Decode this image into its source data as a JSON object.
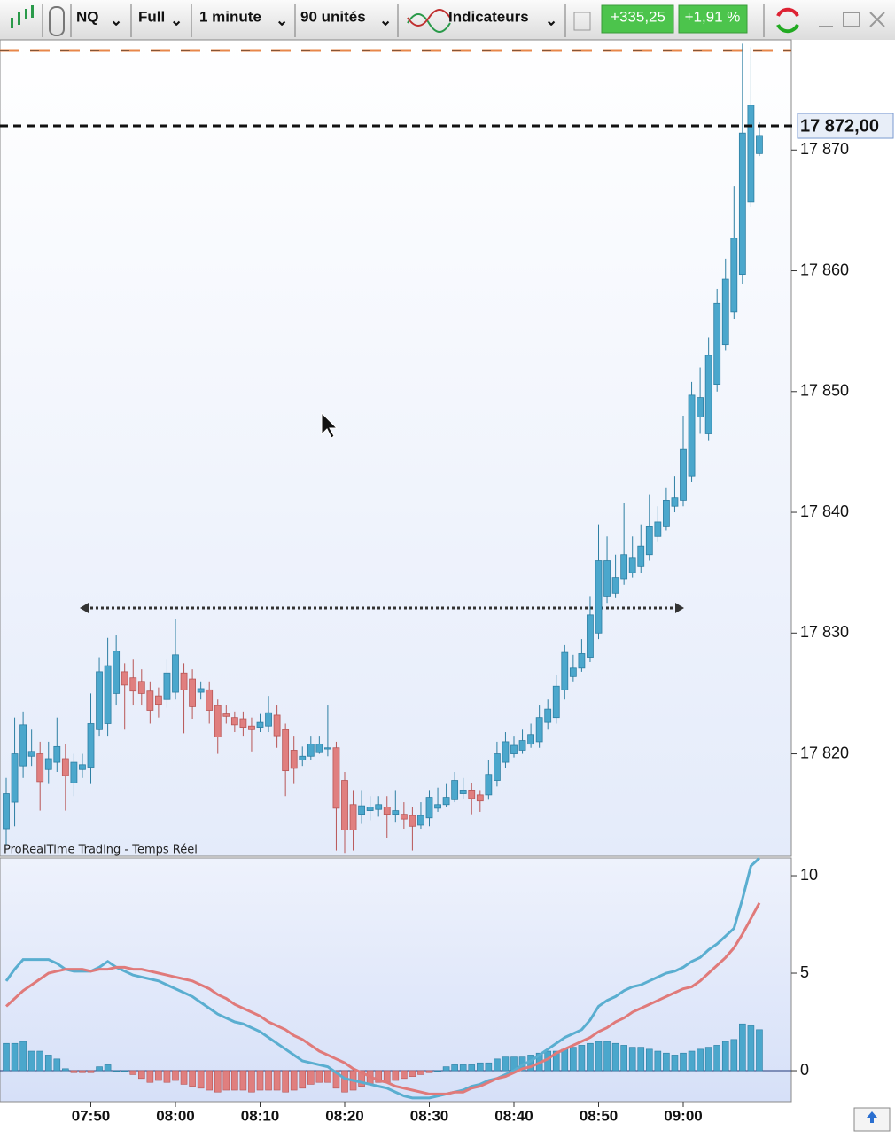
{
  "toolbar": {
    "symbol": "NQ",
    "mode": "Full",
    "interval": "1 minute",
    "units": "90 unités",
    "indicators": "Indicateurs",
    "change_points": "+335,25",
    "change_percent": "+1,91 %"
  },
  "chart_data": [
    {
      "type": "candlestick",
      "watermark": "ProRealTime Trading - Temps Réel",
      "categories": [
        null,
        null,
        null,
        null,
        null,
        null,
        null,
        null,
        null,
        null,
        "07:50",
        null,
        null,
        null,
        null,
        null,
        null,
        null,
        null,
        null,
        "08:00",
        null,
        null,
        null,
        null,
        null,
        null,
        null,
        null,
        null,
        "08:10",
        null,
        null,
        null,
        null,
        null,
        null,
        null,
        null,
        null,
        "08:20",
        null,
        null,
        null,
        null,
        null,
        null,
        null,
        null,
        null,
        "08:30",
        null,
        null,
        null,
        null,
        null,
        null,
        null,
        null,
        null,
        "08:40",
        null,
        null,
        null,
        null,
        null,
        null,
        null,
        null,
        null,
        "08:50",
        null,
        null,
        null,
        null,
        null,
        null,
        null,
        null,
        null,
        "09:00",
        null,
        null,
        null,
        null,
        null,
        null,
        null,
        null,
        null
      ],
      "open": [
        17813.8,
        17816,
        17819,
        17819.8,
        17820,
        17818.7,
        17819.3,
        17819.6,
        17817.6,
        17818.7,
        17818.9,
        17822,
        17822.5,
        17825,
        17826.8,
        17826.3,
        17826,
        17825.2,
        17824.8,
        17824.5,
        17825.1,
        17826.7,
        17826.2,
        17825.1,
        17825.3,
        17824,
        17823.3,
        17823,
        17822.9,
        17822.3,
        17822.2,
        17822.3,
        17823.2,
        17822,
        17820.3,
        17819.5,
        17819.8,
        17820.1,
        17820.4,
        17820.5,
        17817.8,
        17815.8,
        17815,
        17815.3,
        17815.4,
        17815.6,
        17815,
        17815,
        17814.9,
        17814.1,
        17814.7,
        17815.5,
        17815.8,
        17816.2,
        17816.7,
        17817,
        17816.6,
        17816.6,
        17817.8,
        17819.3,
        17820,
        17820.3,
        17820.8,
        17821,
        17822.6,
        17823,
        17825.3,
        17826.4,
        17827.1,
        17828,
        17830,
        17833,
        17833.3,
        17834.5,
        17835,
        17835.5,
        17836.5,
        17838,
        17838.8,
        17840.5,
        17841,
        17843,
        17847.9,
        17846.5,
        17850.6,
        17853.9,
        17856.6,
        17859.7,
        17865.7,
        17869.7
      ],
      "high": [
        17818,
        17823,
        17823.5,
        17822,
        17821,
        17821,
        17823,
        17820.8,
        17820,
        17820,
        17825,
        17828,
        17829.6,
        17829.8,
        17827.5,
        17827.8,
        17827,
        17826,
        17825.5,
        17827.8,
        17831.2,
        17827.5,
        17827,
        17826,
        17826,
        17824.5,
        17824,
        17823.5,
        17823.5,
        17823,
        17823.3,
        17824.8,
        17824,
        17822.5,
        17821.5,
        17820.6,
        17821.5,
        17821.5,
        17824,
        17821,
        17818.5,
        17817,
        17817,
        17816.5,
        17816.5,
        17816.5,
        17817,
        17816,
        17815.6,
        17816,
        17817,
        17817.2,
        17817.5,
        17818.5,
        17818,
        17817.6,
        17817,
        17819.5,
        17821,
        17821.8,
        17821.5,
        17822,
        17822.5,
        17824,
        17824.5,
        17826.5,
        17829,
        17828.2,
        17829.5,
        17833,
        17839,
        17838,
        17836.5,
        17840.8,
        17838,
        17839,
        17841.5,
        17840.5,
        17842,
        17843,
        17848,
        17850.8,
        17852,
        17854.5,
        17858.5,
        17861,
        17867,
        17878.8,
        17878.5,
        17872.3
      ],
      "low": [
        17812.5,
        17814,
        17818,
        17819,
        17815.3,
        17817.5,
        17818.5,
        17815.3,
        17816.5,
        17818,
        17817.5,
        17821.5,
        17821.5,
        17824,
        17822,
        17824,
        17824,
        17822.5,
        17823,
        17823.8,
        17824.5,
        17821.7,
        17822.9,
        17824.5,
        17822.5,
        17820,
        17822.5,
        17821.8,
        17821.5,
        17820.2,
        17821.8,
        17821.8,
        17820.5,
        17816.5,
        17817.5,
        17819,
        17819.5,
        17820,
        17819.8,
        17812,
        17811.8,
        17812,
        17814.2,
        17814.5,
        17814.8,
        17813,
        17814.3,
        17813.8,
        17812,
        17813.8,
        17814,
        17815.2,
        17815.6,
        17816,
        17816.3,
        17815,
        17815.2,
        17816.2,
        17817.3,
        17818.8,
        17819.7,
        17820,
        17820.5,
        17820.5,
        17822,
        17822.5,
        17824.5,
        17826,
        17826.8,
        17827.6,
        17829.5,
        17832.5,
        17832.9,
        17834,
        17834.6,
        17835,
        17836,
        17837.6,
        17838.5,
        17840,
        17840.5,
        17842.5,
        17846.5,
        17845.9,
        17850,
        17853.4,
        17856,
        17858.9,
        17865.3,
        17869.5
      ],
      "close": [
        17816.7,
        17820,
        17822.4,
        17820.2,
        17817.7,
        17819.6,
        17820.6,
        17818.2,
        17819.3,
        17819.1,
        17822.5,
        17826.8,
        17827.3,
        17828.5,
        17825.7,
        17825.2,
        17825,
        17823.6,
        17824.1,
        17826.7,
        17828.2,
        17825.3,
        17823.9,
        17825.4,
        17823.6,
        17821.4,
        17823.1,
        17822.4,
        17822.2,
        17822,
        17822.6,
        17823.4,
        17821.5,
        17818.6,
        17818.8,
        17819.8,
        17820.8,
        17820.8,
        17820.5,
        17815.5,
        17813.7,
        17813.7,
        17815.7,
        17815.6,
        17815.8,
        17815,
        17815.3,
        17814.6,
        17814,
        17814.9,
        17816.4,
        17815.8,
        17816.4,
        17817.8,
        17817,
        17816.3,
        17816.1,
        17818.3,
        17820,
        17821,
        17820.7,
        17821.1,
        17821.6,
        17823,
        17823.7,
        17825.6,
        17828.4,
        17827.1,
        17828.3,
        17831.5,
        17836,
        17836,
        17834.6,
        17836.5,
        17836.2,
        17837.2,
        17838.8,
        17839.2,
        17841,
        17841.2,
        17845.2,
        17849.7,
        17849.5,
        17853,
        17857.3,
        17859.3,
        17862.7,
        17871.4,
        17873.7,
        17871.2
      ],
      "up_color": "#4ba7cc",
      "down_color": "#e07f7f",
      "ylim": [
        17811.6,
        17878.9
      ],
      "yticks": [
        {
          "value": 17820,
          "label": "17 820"
        },
        {
          "value": 17830,
          "label": "17 830"
        },
        {
          "value": 17840,
          "label": "17 840"
        },
        {
          "value": 17850,
          "label": "17 850"
        },
        {
          "value": 17860,
          "label": "17 860"
        },
        {
          "value": 17870,
          "label": "17 870"
        }
      ],
      "last_price": {
        "value": 17872,
        "label": "17 872,00"
      }
    },
    {
      "type": "macd",
      "series": [
        {
          "type": "bar",
          "color": "#4ba7cc",
          "neg_color": "#e07f7f",
          "values": [
            1.4,
            1.4,
            1.5,
            1.0,
            1.0,
            0.8,
            0.6,
            0.1,
            -0.1,
            -0.1,
            -0.1,
            0.2,
            0.3,
            0,
            0,
            -0.2,
            -0.4,
            -0.6,
            -0.5,
            -0.6,
            -0.5,
            -0.7,
            -0.8,
            -0.9,
            -1.0,
            -1.1,
            -1.0,
            -1.0,
            -1.0,
            -1.1,
            -1.0,
            -1.0,
            -1.0,
            -1.1,
            -1.0,
            -0.9,
            -0.7,
            -0.6,
            -0.6,
            -0.9,
            -1.1,
            -1.0,
            -0.8,
            -0.7,
            -0.6,
            -0.6,
            -0.5,
            -0.4,
            -0.3,
            -0.2,
            -0.1,
            0,
            0.2,
            0.3,
            0.3,
            0.3,
            0.4,
            0.4,
            0.6,
            0.7,
            0.7,
            0.7,
            0.8,
            0.9,
            1.0,
            1.0,
            1.1,
            1.2,
            1.3,
            1.4,
            1.5,
            1.5,
            1.4,
            1.3,
            1.2,
            1.2,
            1.1,
            1.0,
            0.9,
            0.8,
            0.9,
            1.0,
            1.1,
            1.2,
            1.3,
            1.5,
            1.6,
            2.4,
            2.3,
            2.1
          ]
        },
        {
          "type": "line",
          "color": "#5aaed0",
          "values": [
            4.6,
            5.2,
            5.7,
            5.7,
            5.7,
            5.7,
            5.5,
            5.2,
            5.1,
            5.1,
            5.1,
            5.3,
            5.6,
            5.3,
            5.1,
            4.9,
            4.8,
            4.7,
            4.6,
            4.4,
            4.2,
            4.0,
            3.8,
            3.5,
            3.2,
            2.9,
            2.7,
            2.5,
            2.4,
            2.2,
            2.0,
            1.7,
            1.4,
            1.1,
            0.8,
            0.5,
            0.4,
            0.3,
            0.2,
            -0.1,
            -0.4,
            -0.5,
            -0.6,
            -0.7,
            -0.8,
            -0.9,
            -1.1,
            -1.3,
            -1.4,
            -1.4,
            -1.4,
            -1.3,
            -1.2,
            -1.1,
            -1.0,
            -0.8,
            -0.7,
            -0.5,
            -0.4,
            -0.2,
            0,
            0.3,
            0.5,
            0.8,
            1.1,
            1.4,
            1.7,
            1.9,
            2.1,
            2.6,
            3.3,
            3.6,
            3.8,
            4.1,
            4.3,
            4.4,
            4.6,
            4.8,
            5.0,
            5.1,
            5.3,
            5.6,
            5.8,
            6.2,
            6.5,
            6.9,
            7.3,
            8.8,
            10.5,
            10.9
          ]
        },
        {
          "type": "line",
          "color": "#e07a7a",
          "values": [
            3.3,
            3.7,
            4.1,
            4.4,
            4.7,
            5.0,
            5.1,
            5.2,
            5.2,
            5.2,
            5.1,
            5.2,
            5.2,
            5.3,
            5.3,
            5.2,
            5.2,
            5.1,
            5.0,
            4.9,
            4.8,
            4.7,
            4.6,
            4.4,
            4.2,
            3.9,
            3.7,
            3.4,
            3.2,
            3.0,
            2.8,
            2.5,
            2.3,
            2.1,
            1.8,
            1.6,
            1.3,
            1.0,
            0.8,
            0.6,
            0.4,
            0.1,
            -0.1,
            -0.3,
            -0.5,
            -0.6,
            -0.8,
            -0.9,
            -1.0,
            -1.1,
            -1.2,
            -1.2,
            -1.2,
            -1.1,
            -1.1,
            -0.9,
            -0.8,
            -0.6,
            -0.4,
            -0.3,
            -0.1,
            0.1,
            0.2,
            0.4,
            0.6,
            0.9,
            1.1,
            1.3,
            1.5,
            1.7,
            2.0,
            2.2,
            2.5,
            2.7,
            3.0,
            3.2,
            3.4,
            3.6,
            3.8,
            4.0,
            4.2,
            4.3,
            4.6,
            5.0,
            5.4,
            5.8,
            6.3,
            7.0,
            7.8,
            8.6
          ]
        }
      ],
      "ylim": [
        -1.59,
        10.91
      ],
      "yticks": [
        0,
        5,
        10
      ]
    }
  ]
}
